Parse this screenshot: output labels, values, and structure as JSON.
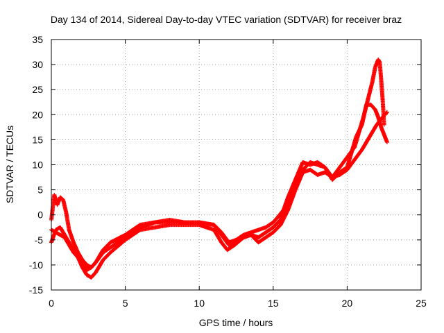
{
  "chart_data": {
    "type": "scatter",
    "title": "Day 134 of 2014, Sidereal Day-to-day VTEC variation (SDTVAR) for receiver braz",
    "xlabel": "GPS time / hours",
    "ylabel": "SDTVAR / TECUs",
    "xlim": [
      0,
      25
    ],
    "ylim": [
      -15,
      35
    ],
    "xticks": [
      0,
      5,
      10,
      15,
      20,
      25
    ],
    "yticks": [
      -15,
      -10,
      -5,
      0,
      5,
      10,
      15,
      20,
      25,
      30,
      35
    ],
    "grid": true,
    "legend": "none",
    "marker": "plus",
    "color": "#ff0000",
    "series": [
      {
        "x": [
          0.0,
          0.3,
          0.6,
          0.9,
          1.2,
          1.5,
          1.8,
          2.1,
          2.4,
          2.7,
          3.0,
          3.5,
          4.0,
          5.0,
          6.0,
          7.0,
          8.0,
          9.0,
          10.0,
          11.0,
          11.5,
          11.9,
          12.4,
          13.0,
          13.5,
          14.0,
          14.5,
          15.0,
          15.5,
          16.0,
          16.5,
          17.0,
          17.5,
          18.0,
          18.5,
          19.0,
          19.5,
          20.0,
          20.5,
          21.0,
          21.5,
          22.0,
          22.4,
          22.7
        ],
        "y": [
          -5.5,
          -3.0,
          -2.5,
          -4.0,
          -5.5,
          -7.0,
          -8.5,
          -10.5,
          -12.0,
          -12.5,
          -11.5,
          -9.0,
          -7.5,
          -5.0,
          -3.0,
          -2.5,
          -2.0,
          -2.0,
          -2.0,
          -3.0,
          -5.5,
          -7.0,
          -6.0,
          -4.5,
          -4.0,
          -5.5,
          -4.5,
          -3.5,
          -2.0,
          1.0,
          5.0,
          8.5,
          9.0,
          8.0,
          8.5,
          7.5,
          8.0,
          9.0,
          11.0,
          13.0,
          15.5,
          18.0,
          19.5,
          20.5
        ]
      },
      {
        "x": [
          0.0,
          0.3,
          0.6,
          0.9,
          1.2,
          1.5,
          1.8,
          2.1,
          2.4,
          2.7,
          3.0,
          3.5,
          4.0,
          5.0,
          6.0,
          7.0,
          8.0,
          9.0,
          10.0,
          11.0,
          11.5,
          12.0,
          12.5,
          13.0,
          13.5,
          14.0,
          14.5,
          15.0,
          15.3,
          15.7,
          16.0,
          16.5,
          17.0,
          17.5,
          18.0,
          18.5,
          19.0,
          19.5,
          20.0,
          20.3,
          20.6,
          21.0,
          21.3,
          21.6,
          21.9,
          22.1,
          22.3,
          22.5,
          22.7
        ],
        "y": [
          -3.0,
          -3.5,
          -4.0,
          -4.5,
          -6.0,
          -7.5,
          -8.5,
          -9.5,
          -11.0,
          -10.5,
          -9.5,
          -7.0,
          -5.5,
          -4.0,
          -2.0,
          -1.5,
          -1.0,
          -1.5,
          -1.5,
          -2.0,
          -3.5,
          -5.5,
          -5.0,
          -4.0,
          -3.5,
          -3.0,
          -2.5,
          -1.5,
          -0.5,
          1.0,
          3.5,
          7.0,
          10.5,
          10.0,
          10.5,
          9.5,
          7.0,
          8.5,
          9.5,
          12.5,
          15.5,
          18.0,
          22.0,
          22.0,
          21.0,
          19.5,
          17.5,
          16.0,
          14.5
        ]
      },
      {
        "x": [
          0.0,
          0.2,
          0.4,
          0.6,
          0.8,
          1.0,
          1.2,
          1.5,
          1.8,
          2.1,
          2.4,
          2.7,
          3.0,
          3.5,
          4.0,
          5.0,
          6.0,
          7.0,
          8.0,
          9.0,
          10.0,
          11.0,
          11.5,
          12.0,
          12.5,
          13.0,
          13.5,
          14.0,
          14.5,
          15.0,
          15.5,
          16.0,
          16.5,
          17.0,
          17.5,
          18.0,
          18.5,
          19.0,
          20.5,
          20.8,
          21.1,
          21.4,
          21.7,
          21.9,
          22.1,
          22.2,
          22.3,
          22.4,
          22.5
        ],
        "y": [
          -1.0,
          4.0,
          2.0,
          3.5,
          3.0,
          0.5,
          -3.0,
          -5.5,
          -7.5,
          -9.0,
          -10.0,
          -10.5,
          -9.5,
          -7.5,
          -6.5,
          -4.5,
          -2.5,
          -1.5,
          -1.5,
          -1.5,
          -1.5,
          -2.0,
          -4.0,
          -6.0,
          -5.5,
          -4.5,
          -4.0,
          -4.5,
          -3.5,
          -2.5,
          -1.0,
          2.0,
          5.5,
          9.0,
          10.5,
          10.0,
          9.5,
          7.5,
          13.5,
          16.5,
          19.5,
          23.0,
          26.5,
          29.5,
          31.0,
          30.5,
          27.0,
          23.0,
          18.0
        ]
      }
    ]
  }
}
